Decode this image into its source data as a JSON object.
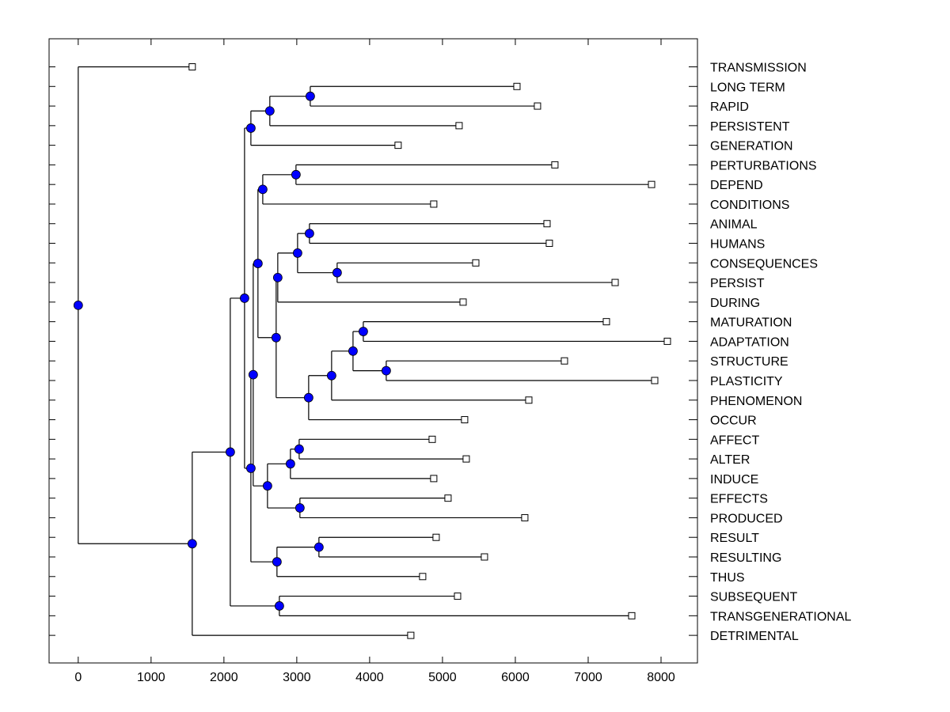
{
  "chart_data": {
    "type": "dendrogram",
    "title": "",
    "xlabel": "",
    "ylabel": "",
    "xlim": [
      -400,
      8500
    ],
    "xticks": [
      0,
      1000,
      2000,
      3000,
      4000,
      5000,
      6000,
      7000,
      8000
    ],
    "xtick_labels": [
      "0",
      "1000",
      "2000",
      "3000",
      "4000",
      "5000",
      "6000",
      "7000",
      "8000"
    ],
    "grid": false,
    "legend": "none",
    "colors": {
      "node_fill": "#0000ff",
      "node_stroke": "#000000",
      "leaf_fill": "#ffffff",
      "line": "#000000"
    },
    "leaves": [
      {
        "label": "TRANSMISSION",
        "value": 1565
      },
      {
        "label": "LONG TERM",
        "value": 6022
      },
      {
        "label": "RAPID",
        "value": 6304
      },
      {
        "label": "PERSISTENT",
        "value": 5228
      },
      {
        "label": "GENERATION",
        "value": 4391
      },
      {
        "label": "PERTURBATIONS",
        "value": 6543
      },
      {
        "label": "DEPEND",
        "value": 7870
      },
      {
        "label": "CONDITIONS",
        "value": 4880
      },
      {
        "label": "ANIMAL",
        "value": 6435
      },
      {
        "label": "HUMANS",
        "value": 6467
      },
      {
        "label": "CONSEQUENCES",
        "value": 5457
      },
      {
        "label": "PERSIST",
        "value": 7370
      },
      {
        "label": "DURING",
        "value": 5283
      },
      {
        "label": "MATURATION",
        "value": 7250
      },
      {
        "label": "ADAPTATION",
        "value": 8087
      },
      {
        "label": "STRUCTURE",
        "value": 6674
      },
      {
        "label": "PLASTICITY",
        "value": 7913
      },
      {
        "label": "PHENOMENON",
        "value": 6185
      },
      {
        "label": "OCCUR",
        "value": 5304
      },
      {
        "label": "AFFECT",
        "value": 4859
      },
      {
        "label": "ALTER",
        "value": 5326
      },
      {
        "label": "INDUCE",
        "value": 4880
      },
      {
        "label": "EFFECTS",
        "value": 5076
      },
      {
        "label": "PRODUCED",
        "value": 6130
      },
      {
        "label": "RESULT",
        "value": 4913
      },
      {
        "label": "RESULTING",
        "value": 5576
      },
      {
        "label": "THUS",
        "value": 4728
      },
      {
        "label": "SUBSEQUENT",
        "value": 5207
      },
      {
        "label": "TRANSGENERATIONAL",
        "value": 7598
      },
      {
        "label": "DETRIMENTAL",
        "value": 4565
      }
    ],
    "tree": {
      "value": 0,
      "children": [
        {
          "leaf": 0
        },
        {
          "value": 1565,
          "children": [
            {
              "value": 2087,
              "children": [
                {
                  "value": 2283,
                  "children": [
                    {
                      "value": 2370,
                      "children": [
                        {
                          "value": 2630,
                          "children": [
                            {
                              "value": 3185,
                              "children": [
                                {
                                  "leaf": 1
                                },
                                {
                                  "leaf": 2
                                }
                              ]
                            },
                            {
                              "leaf": 3
                            }
                          ]
                        },
                        {
                          "leaf": 4
                        }
                      ]
                    },
                    {
                      "value": 2370,
                      "children": [
                        {
                          "value": 2402,
                          "children": [
                            {
                              "value": 2467,
                              "children": [
                                {
                                  "value": 2533,
                                  "children": [
                                    {
                                      "value": 2989,
                                      "children": [
                                        {
                                          "leaf": 5
                                        },
                                        {
                                          "leaf": 6
                                        }
                                      ]
                                    },
                                    {
                                      "leaf": 7
                                    }
                                  ]
                                },
                                {
                                  "value": 2717,
                                  "children": [
                                    {
                                      "value": 2739,
                                      "children": [
                                        {
                                          "value": 3011,
                                          "children": [
                                            {
                                              "value": 3174,
                                              "children": [
                                                {
                                                  "leaf": 8
                                                },
                                                {
                                                  "leaf": 9
                                                }
                                              ]
                                            },
                                            {
                                              "value": 3554,
                                              "children": [
                                                {
                                                  "leaf": 10
                                                },
                                                {
                                                  "leaf": 11
                                                }
                                              ]
                                            }
                                          ]
                                        },
                                        {
                                          "leaf": 12
                                        }
                                      ]
                                    },
                                    {
                                      "value": 3163,
                                      "children": [
                                        {
                                          "value": 3478,
                                          "children": [
                                            {
                                              "value": 3772,
                                              "children": [
                                                {
                                                  "value": 3913,
                                                  "children": [
                                                    {
                                                      "leaf": 13
                                                    },
                                                    {
                                                      "leaf": 14
                                                    }
                                                  ]
                                                },
                                                {
                                                  "value": 4228,
                                                  "children": [
                                                    {
                                                      "leaf": 15
                                                    },
                                                    {
                                                      "leaf": 16
                                                    }
                                                  ]
                                                }
                                              ]
                                            },
                                            {
                                              "leaf": 17
                                            }
                                          ]
                                        },
                                        {
                                          "leaf": 18
                                        }
                                      ]
                                    }
                                  ]
                                }
                              ]
                            },
                            {
                              "value": 2598,
                              "children": [
                                {
                                  "value": 2913,
                                  "children": [
                                    {
                                      "value": 3033,
                                      "children": [
                                        {
                                          "leaf": 19
                                        },
                                        {
                                          "leaf": 20
                                        }
                                      ]
                                    },
                                    {
                                      "leaf": 21
                                    }
                                  ]
                                },
                                {
                                  "value": 3043,
                                  "children": [
                                    {
                                      "leaf": 22
                                    },
                                    {
                                      "leaf": 23
                                    }
                                  ]
                                }
                              ]
                            }
                          ]
                        },
                        {
                          "value": 2728,
                          "children": [
                            {
                              "value": 3304,
                              "children": [
                                {
                                  "leaf": 24
                                },
                                {
                                  "leaf": 25
                                }
                              ]
                            },
                            {
                              "leaf": 26
                            }
                          ]
                        }
                      ]
                    }
                  ]
                },
                {
                  "value": 2761,
                  "children": [
                    {
                      "leaf": 27
                    },
                    {
                      "leaf": 28
                    }
                  ]
                }
              ]
            },
            {
              "leaf": 29
            }
          ]
        }
      ]
    }
  }
}
